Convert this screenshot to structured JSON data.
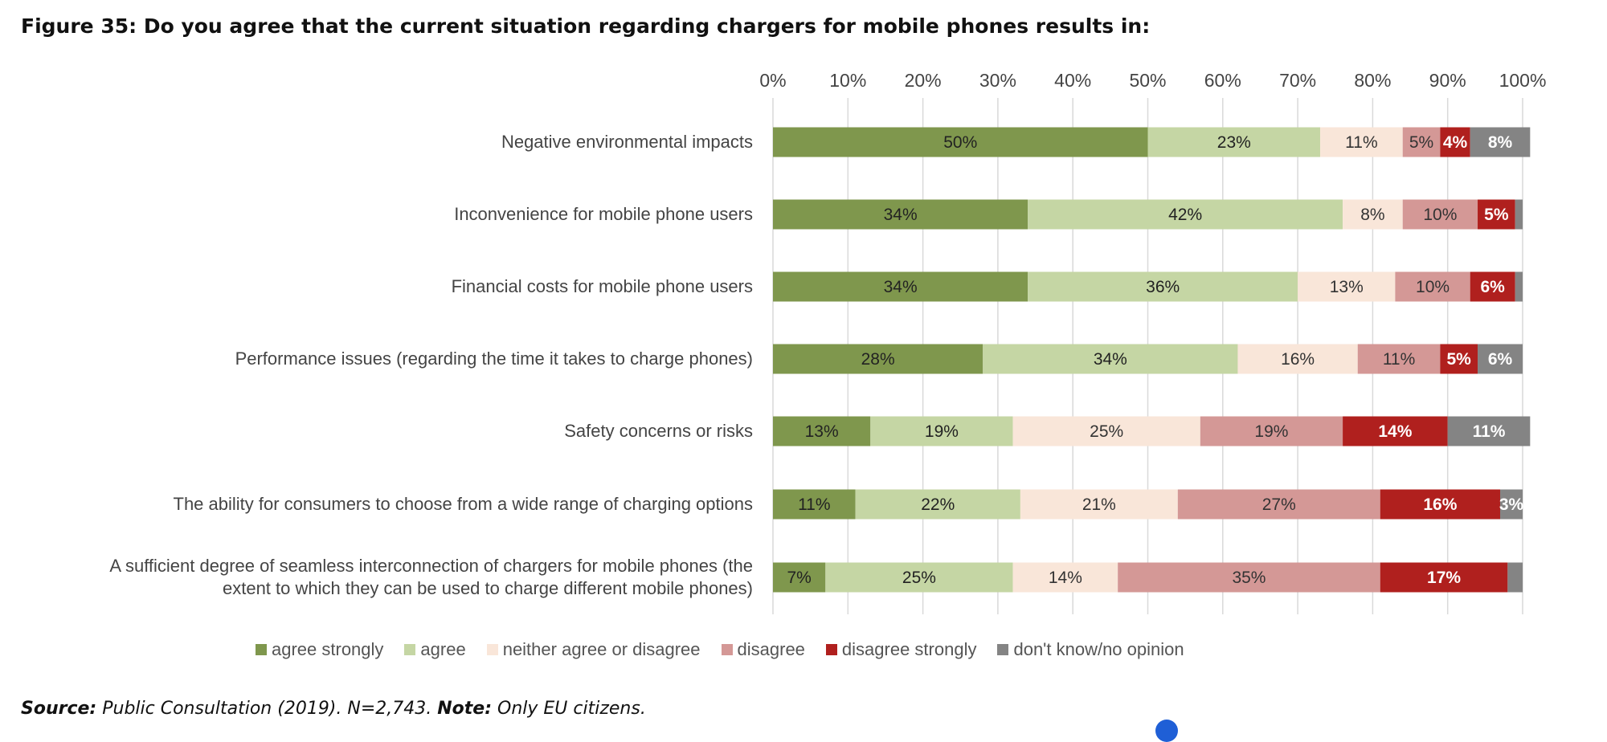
{
  "title": "Figure 35: Do you agree that the current situation regarding chargers for mobile phones results in:",
  "source": {
    "source_label": "Source:",
    "source_text": " Public Consultation (2019). N=2,743. ",
    "note_label": "Note:",
    "note_text": " Only EU citizens."
  },
  "chart_data": {
    "type": "bar",
    "orientation": "horizontal",
    "stacked": true,
    "title": "Figure 35: Do you agree that the current situation regarding chargers for mobile phones results in:",
    "xlim": [
      0,
      100
    ],
    "x_ticks": [
      "0%",
      "10%",
      "20%",
      "30%",
      "40%",
      "50%",
      "60%",
      "70%",
      "80%",
      "90%",
      "100%"
    ],
    "legend_position": "bottom",
    "categories": [
      "Negative environmental impacts",
      "Inconvenience for mobile phone users",
      "Financial costs for mobile phone users",
      "Performance issues (regarding the time it takes to charge phones)",
      "Safety concerns or risks",
      "The ability for consumers to choose from a wide range of charging options",
      "A sufficient degree of seamless interconnection of chargers for mobile phones (the extent to which they can be used to charge different mobile phones)"
    ],
    "category_lines": [
      [
        "Negative environmental impacts"
      ],
      [
        "Inconvenience for mobile phone users"
      ],
      [
        "Financial costs for mobile phone users"
      ],
      [
        "Performance issues (regarding the time it takes to charge phones)"
      ],
      [
        "Safety concerns or risks"
      ],
      [
        "The ability for consumers to choose from a wide range of charging options"
      ],
      [
        "A sufficient degree of seamless interconnection of chargers for mobile phones (the",
        "extent to which they can be used to charge different mobile phones)"
      ]
    ],
    "series": [
      {
        "name": "agree strongly",
        "color": "#7f974d",
        "label_color": "#222222",
        "values": [
          50,
          34,
          34,
          28,
          13,
          11,
          7
        ]
      },
      {
        "name": "agree",
        "color": "#c5d6a4",
        "label_color": "#222222",
        "values": [
          23,
          42,
          36,
          34,
          19,
          22,
          25
        ]
      },
      {
        "name": "neither agree or disagree",
        "color": "#f9e6d9",
        "label_color": "#333333",
        "values": [
          11,
          8,
          13,
          16,
          25,
          21,
          14
        ]
      },
      {
        "name": "disagree",
        "color": "#d49896",
        "label_color": "#333333",
        "values": [
          5,
          10,
          10,
          11,
          19,
          27,
          35
        ]
      },
      {
        "name": "disagree strongly",
        "color": "#b0201e",
        "label_color": "#ffffff",
        "values": [
          4,
          5,
          6,
          5,
          14,
          16,
          17
        ]
      },
      {
        "name": "don't know/no opinion",
        "color": "#848484",
        "label_color": "#ffffff",
        "values": [
          8,
          1,
          1,
          6,
          11,
          3,
          2
        ]
      }
    ],
    "data_labels": [
      [
        "50%",
        "23%",
        "11%",
        "5%",
        "4%",
        "8%"
      ],
      [
        "34%",
        "42%",
        "8%",
        "10%",
        "5%",
        ""
      ],
      [
        "34%",
        "36%",
        "13%",
        "10%",
        "6%",
        ""
      ],
      [
        "28%",
        "34%",
        "16%",
        "11%",
        "5%",
        "6%"
      ],
      [
        "13%",
        "19%",
        "25%",
        "19%",
        "14%",
        "11%"
      ],
      [
        "11%",
        "22%",
        "21%",
        "27%",
        "16%",
        "3%"
      ],
      [
        "7%",
        "25%",
        "14%",
        "35%",
        "17%",
        ""
      ]
    ]
  }
}
